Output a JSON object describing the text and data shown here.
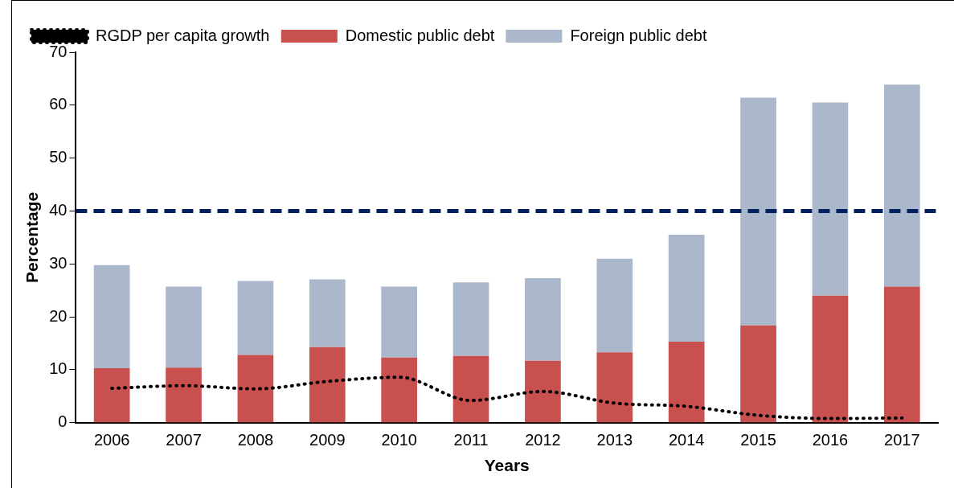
{
  "chart_data": {
    "type": "bar",
    "xlabel": "Years",
    "ylabel": "Percentage",
    "categories": [
      "2006",
      "2007",
      "2008",
      "2009",
      "2010",
      "2011",
      "2012",
      "2013",
      "2014",
      "2015",
      "2016",
      "2017"
    ],
    "stacked": true,
    "series": [
      {
        "name": "Domestic public debt",
        "color": "#c8504f",
        "values": [
          10.3,
          10.4,
          12.8,
          14.3,
          12.3,
          12.6,
          11.7,
          13.3,
          15.3,
          18.4,
          24.0,
          25.7
        ]
      },
      {
        "name": "Foreign public debt",
        "color": "#abb7ca",
        "values": [
          19.5,
          15.3,
          14.0,
          12.8,
          13.4,
          13.9,
          15.6,
          17.7,
          20.2,
          43.0,
          36.5,
          38.2
        ]
      },
      {
        "name": "RGDP per capita growth",
        "type": "line",
        "color": "#000000",
        "line_style": "dotted",
        "marker": "none",
        "values": [
          6.5,
          7.0,
          6.4,
          7.8,
          8.6,
          4.2,
          5.9,
          3.7,
          3.1,
          1.4,
          0.8,
          0.9
        ]
      }
    ],
    "ylim": [
      0,
      70
    ],
    "yticks": [
      0,
      10,
      20,
      30,
      40,
      50,
      60,
      70
    ],
    "ref_lines": [
      {
        "axis": "y",
        "value": 40,
        "color": "#002060",
        "line_style": "dashed"
      }
    ],
    "grid": false,
    "legend": "top"
  }
}
